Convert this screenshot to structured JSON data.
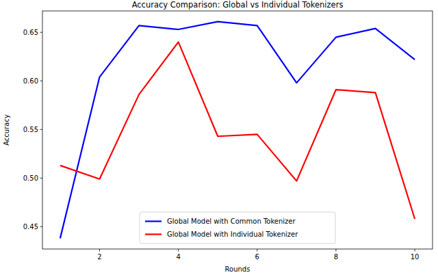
{
  "chart_data": {
    "type": "line",
    "title": "Accuracy Comparison: Global vs Individual Tokenizers",
    "x_label": "Rounds",
    "y_label": "Accuracy",
    "x": [
      1,
      2,
      3,
      4,
      5,
      6,
      7,
      8,
      9,
      10
    ],
    "series": [
      {
        "name": "Global Model with Common Tokenizer",
        "color": "#0000ff",
        "values": [
          0.438,
          0.604,
          0.657,
          0.653,
          0.661,
          0.657,
          0.598,
          0.645,
          0.654,
          0.622
        ]
      },
      {
        "name": "Global Model with Individual Tokenizer",
        "color": "#ff0000",
        "values": [
          0.513,
          0.499,
          0.586,
          0.64,
          0.543,
          0.545,
          0.497,
          0.591,
          0.588,
          0.458
        ]
      }
    ],
    "xlim": [
      0.55,
      10.45
    ],
    "xticks": [
      2,
      4,
      6,
      8,
      10
    ],
    "ylim": [
      0.427,
      0.672
    ],
    "yticks": [
      0.45,
      {
        "value": 0.5,
        "label": "0.50"
      },
      0.55,
      {
        "value": 0.6,
        "label": "0.60"
      },
      0.65
    ],
    "grid": false,
    "legend": "lower center"
  }
}
